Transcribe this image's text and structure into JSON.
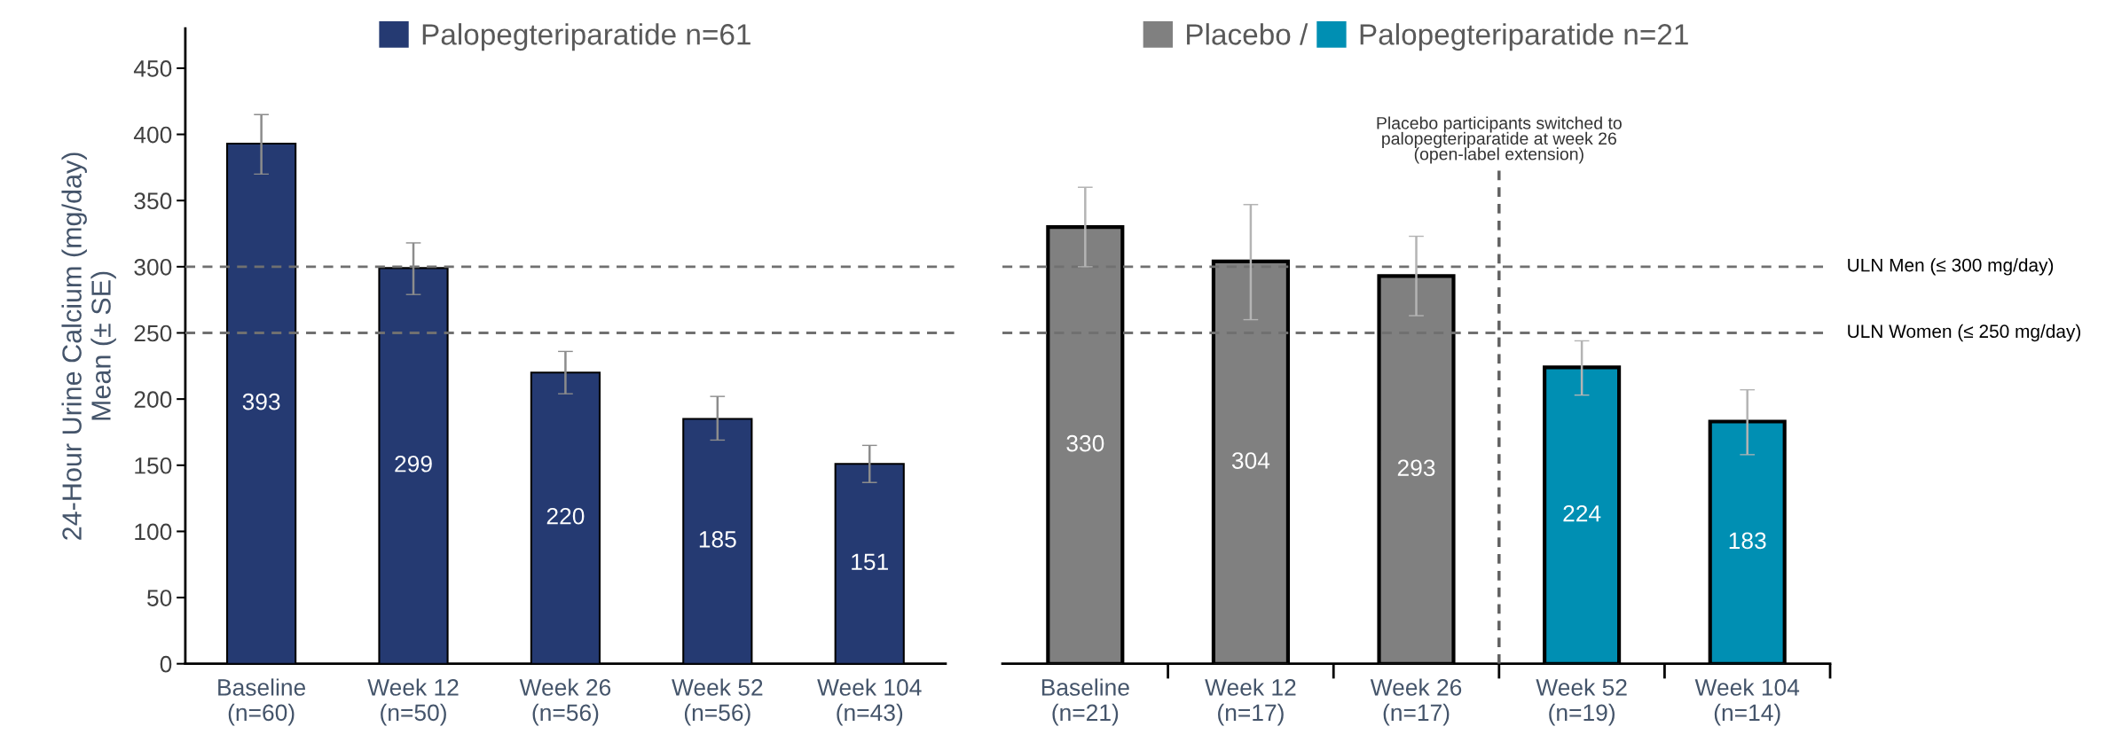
{
  "chart_data": [
    {
      "type": "bar",
      "ylabel": "24-Hour Urine Calcium (mg/day)\nMean (± SE)",
      "categories": [
        "Baseline\n(n=60)",
        "Week 12\n(n=50)",
        "Week 26\n(n=56)",
        "Week 52\n(n=56)",
        "Week 104\n(n=43)"
      ],
      "series": [
        {
          "name": "Palopegteriparatide n=61",
          "color": "#253a72",
          "values": [
            393,
            299,
            220,
            185,
            151
          ],
          "errors": [
            [
              370,
              415
            ],
            [
              279,
              318
            ],
            [
              204,
              236
            ],
            [
              169,
              202
            ],
            [
              137,
              165
            ]
          ]
        }
      ],
      "ylim": [
        0,
        480
      ],
      "yticks": [
        0,
        50,
        100,
        150,
        200,
        250,
        300,
        350,
        400,
        450
      ],
      "ref_lines": [
        {
          "axis": "y",
          "value": 300,
          "line_style": "dashed",
          "color": "#707070"
        },
        {
          "axis": "y",
          "value": 250,
          "line_style": "dashed",
          "color": "#707070"
        }
      ],
      "data_labels": true,
      "legend": "top",
      "grid": false
    },
    {
      "type": "bar",
      "categories": [
        "Baseline\n(n=21)",
        "Week 12\n(n=17)",
        "Week 26\n(n=17)",
        "Week 52\n(n=19)",
        "Week 104\n(n=14)"
      ],
      "series": [
        {
          "name": "Placebo /",
          "color": "#808080",
          "values": [
            330,
            304,
            293,
            null,
            null
          ],
          "errors": [
            [
              300,
              360
            ],
            [
              260,
              347
            ],
            [
              263,
              323
            ],
            null,
            null
          ]
        },
        {
          "name": "Palopegteriparatide n=21",
          "color": "#008fb3",
          "values": [
            null,
            null,
            null,
            224,
            183
          ],
          "errors": [
            null,
            null,
            null,
            [
              203,
              244
            ],
            [
              158,
              207
            ]
          ]
        }
      ],
      "ylim": [
        0,
        450
      ],
      "yticks": [
        0,
        50,
        100,
        150,
        200,
        250,
        300,
        350,
        400,
        450
      ],
      "tick_labels": "x",
      "ref_lines": [
        {
          "axis": "y",
          "value": 300,
          "label": "ULN Men (≤ 300 mg/day)",
          "line_style": "dashed",
          "color": "#707070"
        },
        {
          "axis": "y",
          "value": 250,
          "label": "ULN Women (≤ 250 mg/day)",
          "line_style": "dashed",
          "color": "#707070"
        }
      ],
      "annotations": [
        "Placebo participants switched to\npalopegteriparatide at week 26\n(open-label extension)"
      ],
      "data_labels": true,
      "legend": "top",
      "grid": false
    }
  ]
}
